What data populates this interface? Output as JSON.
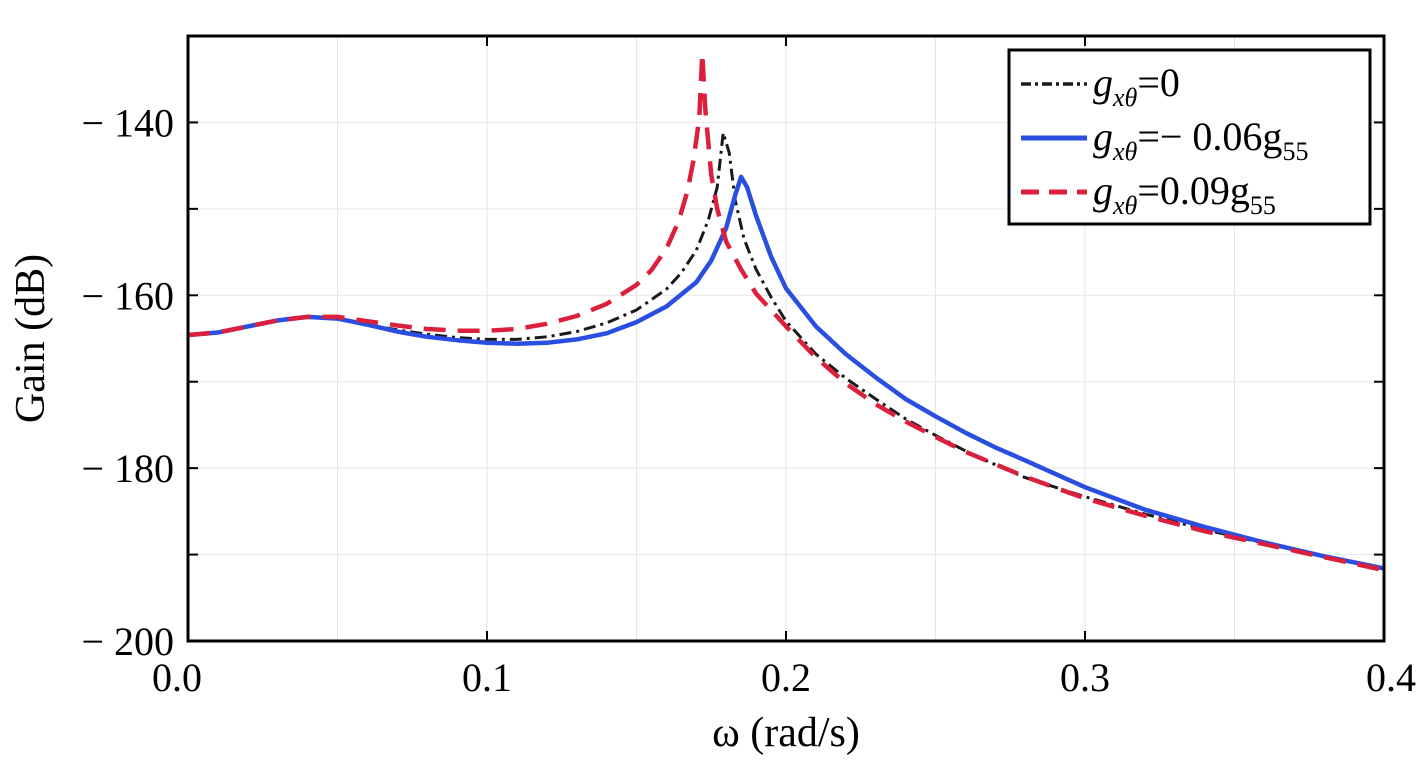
{
  "chart_data": {
    "type": "line",
    "title": "",
    "xlabel": "ω (rad/s)",
    "ylabel": "Gain (dB)",
    "xlim": [
      0.0,
      0.4
    ],
    "ylim": [
      -200,
      -130
    ],
    "x_ticks": [
      0.0,
      0.1,
      0.2,
      0.3,
      0.4
    ],
    "x_tick_labels": [
      "0.0",
      "0.1",
      "0.2",
      "0.3",
      "0.4"
    ],
    "y_ticks": [
      -140,
      -160,
      -180,
      -200
    ],
    "y_tick_labels": [
      "− 140",
      "− 160",
      "− 180",
      "− 200"
    ],
    "minor_y_ticks": [
      -150,
      -170,
      -190
    ],
    "grid": true,
    "legend_position": "top-right",
    "series": [
      {
        "name": "g_xθ=0",
        "legend_main": "g",
        "legend_sub": "xθ",
        "legend_rest": "=0",
        "legend_rest_sub": "",
        "color": "#1a1a1a",
        "dash": "dashdot",
        "x": [
          0.0,
          0.01,
          0.02,
          0.03,
          0.04,
          0.05,
          0.06,
          0.07,
          0.08,
          0.09,
          0.1,
          0.11,
          0.12,
          0.13,
          0.14,
          0.15,
          0.16,
          0.165,
          0.17,
          0.174,
          0.177,
          0.179,
          0.181,
          0.183,
          0.186,
          0.19,
          0.195,
          0.2,
          0.21,
          0.22,
          0.23,
          0.24,
          0.25,
          0.26,
          0.27,
          0.28,
          0.3,
          0.32,
          0.34,
          0.36,
          0.38,
          0.4
        ],
        "y": [
          -164.6,
          -164.3,
          -163.6,
          -162.9,
          -162.5,
          -162.7,
          -163.4,
          -164.0,
          -164.5,
          -164.9,
          -165.1,
          -165.1,
          -164.8,
          -164.2,
          -163.2,
          -161.7,
          -159.3,
          -157.4,
          -154.8,
          -151.3,
          -147.5,
          -141.2,
          -143.5,
          -149.0,
          -153.5,
          -157.0,
          -160.2,
          -163.0,
          -166.8,
          -169.6,
          -172.0,
          -174.3,
          -176.2,
          -178.0,
          -179.6,
          -181.1,
          -183.3,
          -185.3,
          -187.1,
          -188.7,
          -190.2,
          -191.6
        ]
      },
      {
        "name": "g_xθ=− 0.06g_55",
        "legend_main": "g",
        "legend_sub": "xθ",
        "legend_rest": "=− 0.06g",
        "legend_rest_sub": "55",
        "color": "#2a4fe0",
        "dash": "solid",
        "x": [
          0.0,
          0.01,
          0.02,
          0.03,
          0.04,
          0.05,
          0.06,
          0.07,
          0.08,
          0.09,
          0.1,
          0.11,
          0.12,
          0.13,
          0.14,
          0.15,
          0.16,
          0.17,
          0.175,
          0.18,
          0.183,
          0.185,
          0.187,
          0.19,
          0.195,
          0.2,
          0.21,
          0.22,
          0.23,
          0.24,
          0.25,
          0.26,
          0.27,
          0.28,
          0.3,
          0.32,
          0.34,
          0.36,
          0.38,
          0.4
        ],
        "y": [
          -164.6,
          -164.3,
          -163.6,
          -162.9,
          -162.5,
          -162.7,
          -163.4,
          -164.2,
          -164.8,
          -165.2,
          -165.5,
          -165.6,
          -165.5,
          -165.1,
          -164.4,
          -163.1,
          -161.3,
          -158.5,
          -156.0,
          -152.2,
          -148.4,
          -146.3,
          -147.5,
          -150.8,
          -155.5,
          -159.2,
          -163.6,
          -166.8,
          -169.5,
          -172.0,
          -174.0,
          -175.9,
          -177.6,
          -179.1,
          -182.2,
          -184.8,
          -186.8,
          -188.6,
          -190.2,
          -191.6
        ]
      },
      {
        "name": "g_xθ=0.09g_55",
        "legend_main": "g",
        "legend_sub": "xθ",
        "legend_rest": "=0.09g",
        "legend_rest_sub": "55",
        "color": "#dc1f3c",
        "dash": "dashed",
        "x": [
          0.0,
          0.01,
          0.02,
          0.03,
          0.04,
          0.05,
          0.06,
          0.07,
          0.08,
          0.09,
          0.1,
          0.11,
          0.12,
          0.13,
          0.14,
          0.15,
          0.155,
          0.16,
          0.164,
          0.167,
          0.169,
          0.171,
          0.172,
          0.173,
          0.175,
          0.177,
          0.18,
          0.185,
          0.19,
          0.2,
          0.21,
          0.22,
          0.23,
          0.24,
          0.25,
          0.26,
          0.28,
          0.3,
          0.32,
          0.34,
          0.36,
          0.38,
          0.4
        ],
        "y": [
          -164.6,
          -164.3,
          -163.6,
          -162.9,
          -162.5,
          -162.5,
          -163.0,
          -163.5,
          -163.9,
          -164.1,
          -164.1,
          -163.9,
          -163.3,
          -162.4,
          -161.0,
          -158.8,
          -157.1,
          -154.6,
          -151.5,
          -148.0,
          -144.5,
          -139.5,
          -132.0,
          -138.5,
          -146.0,
          -150.0,
          -153.8,
          -157.0,
          -159.8,
          -163.6,
          -167.2,
          -170.2,
          -172.6,
          -174.6,
          -176.4,
          -178.1,
          -181.0,
          -183.5,
          -185.5,
          -187.3,
          -188.8,
          -190.3,
          -191.8
        ]
      }
    ]
  }
}
